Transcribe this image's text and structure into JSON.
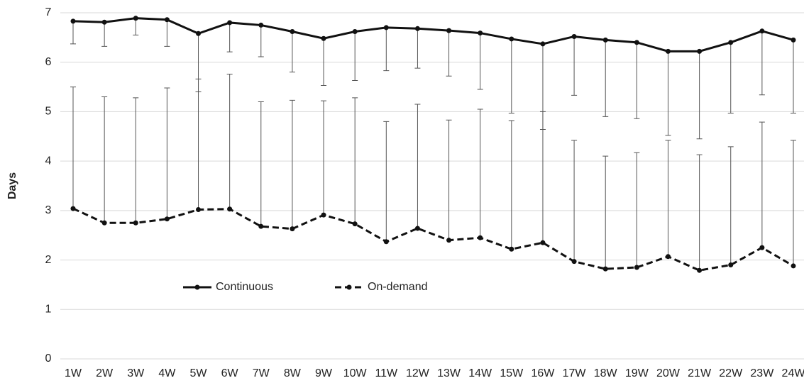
{
  "chart_data": {
    "type": "line",
    "y_label": "Days",
    "categories": [
      "1W",
      "2W",
      "3W",
      "4W",
      "5W",
      "6W",
      "7W",
      "8W",
      "9W",
      "10W",
      "11W",
      "12W",
      "13W",
      "14W",
      "15W",
      "16W",
      "17W",
      "18W",
      "19W",
      "20W",
      "21W",
      "22W",
      "23W",
      "24W"
    ],
    "series": [
      {
        "name": "Continuous",
        "color": "#111111",
        "dash": false,
        "error_direction": "down",
        "values": [
          6.83,
          6.81,
          6.89,
          6.86,
          6.58,
          6.8,
          6.75,
          6.62,
          6.48,
          6.62,
          6.7,
          6.68,
          6.64,
          6.59,
          6.47,
          6.37,
          6.52,
          6.45,
          6.4,
          6.22,
          6.22,
          6.4,
          6.63,
          6.45
        ],
        "errors": [
          0.46,
          0.49,
          0.34,
          0.54,
          1.18,
          0.59,
          0.64,
          0.82,
          0.95,
          0.99,
          0.87,
          0.8,
          0.92,
          1.14,
          1.5,
          1.73,
          1.19,
          1.55,
          1.54,
          1.7,
          1.77,
          1.43,
          1.29,
          1.48
        ]
      },
      {
        "name": "On-demand",
        "color": "#111111",
        "dash": true,
        "error_direction": "up",
        "values": [
          3.04,
          2.75,
          2.75,
          2.83,
          3.02,
          3.03,
          2.68,
          2.63,
          2.91,
          2.73,
          2.37,
          2.64,
          2.4,
          2.45,
          2.22,
          2.35,
          1.97,
          1.82,
          1.85,
          2.07,
          1.79,
          1.9,
          2.25,
          1.88
        ],
        "errors": [
          2.46,
          2.55,
          2.53,
          2.65,
          2.64,
          2.73,
          2.52,
          2.6,
          2.31,
          2.55,
          2.43,
          2.51,
          2.43,
          2.6,
          2.6,
          2.65,
          2.45,
          2.28,
          2.32,
          2.35,
          2.34,
          2.39,
          2.54,
          2.54
        ]
      }
    ],
    "ylim": [
      0,
      7
    ],
    "yticks": [
      0,
      1,
      2,
      3,
      4,
      5,
      6,
      7
    ],
    "grid": true,
    "legend": "lower left"
  }
}
